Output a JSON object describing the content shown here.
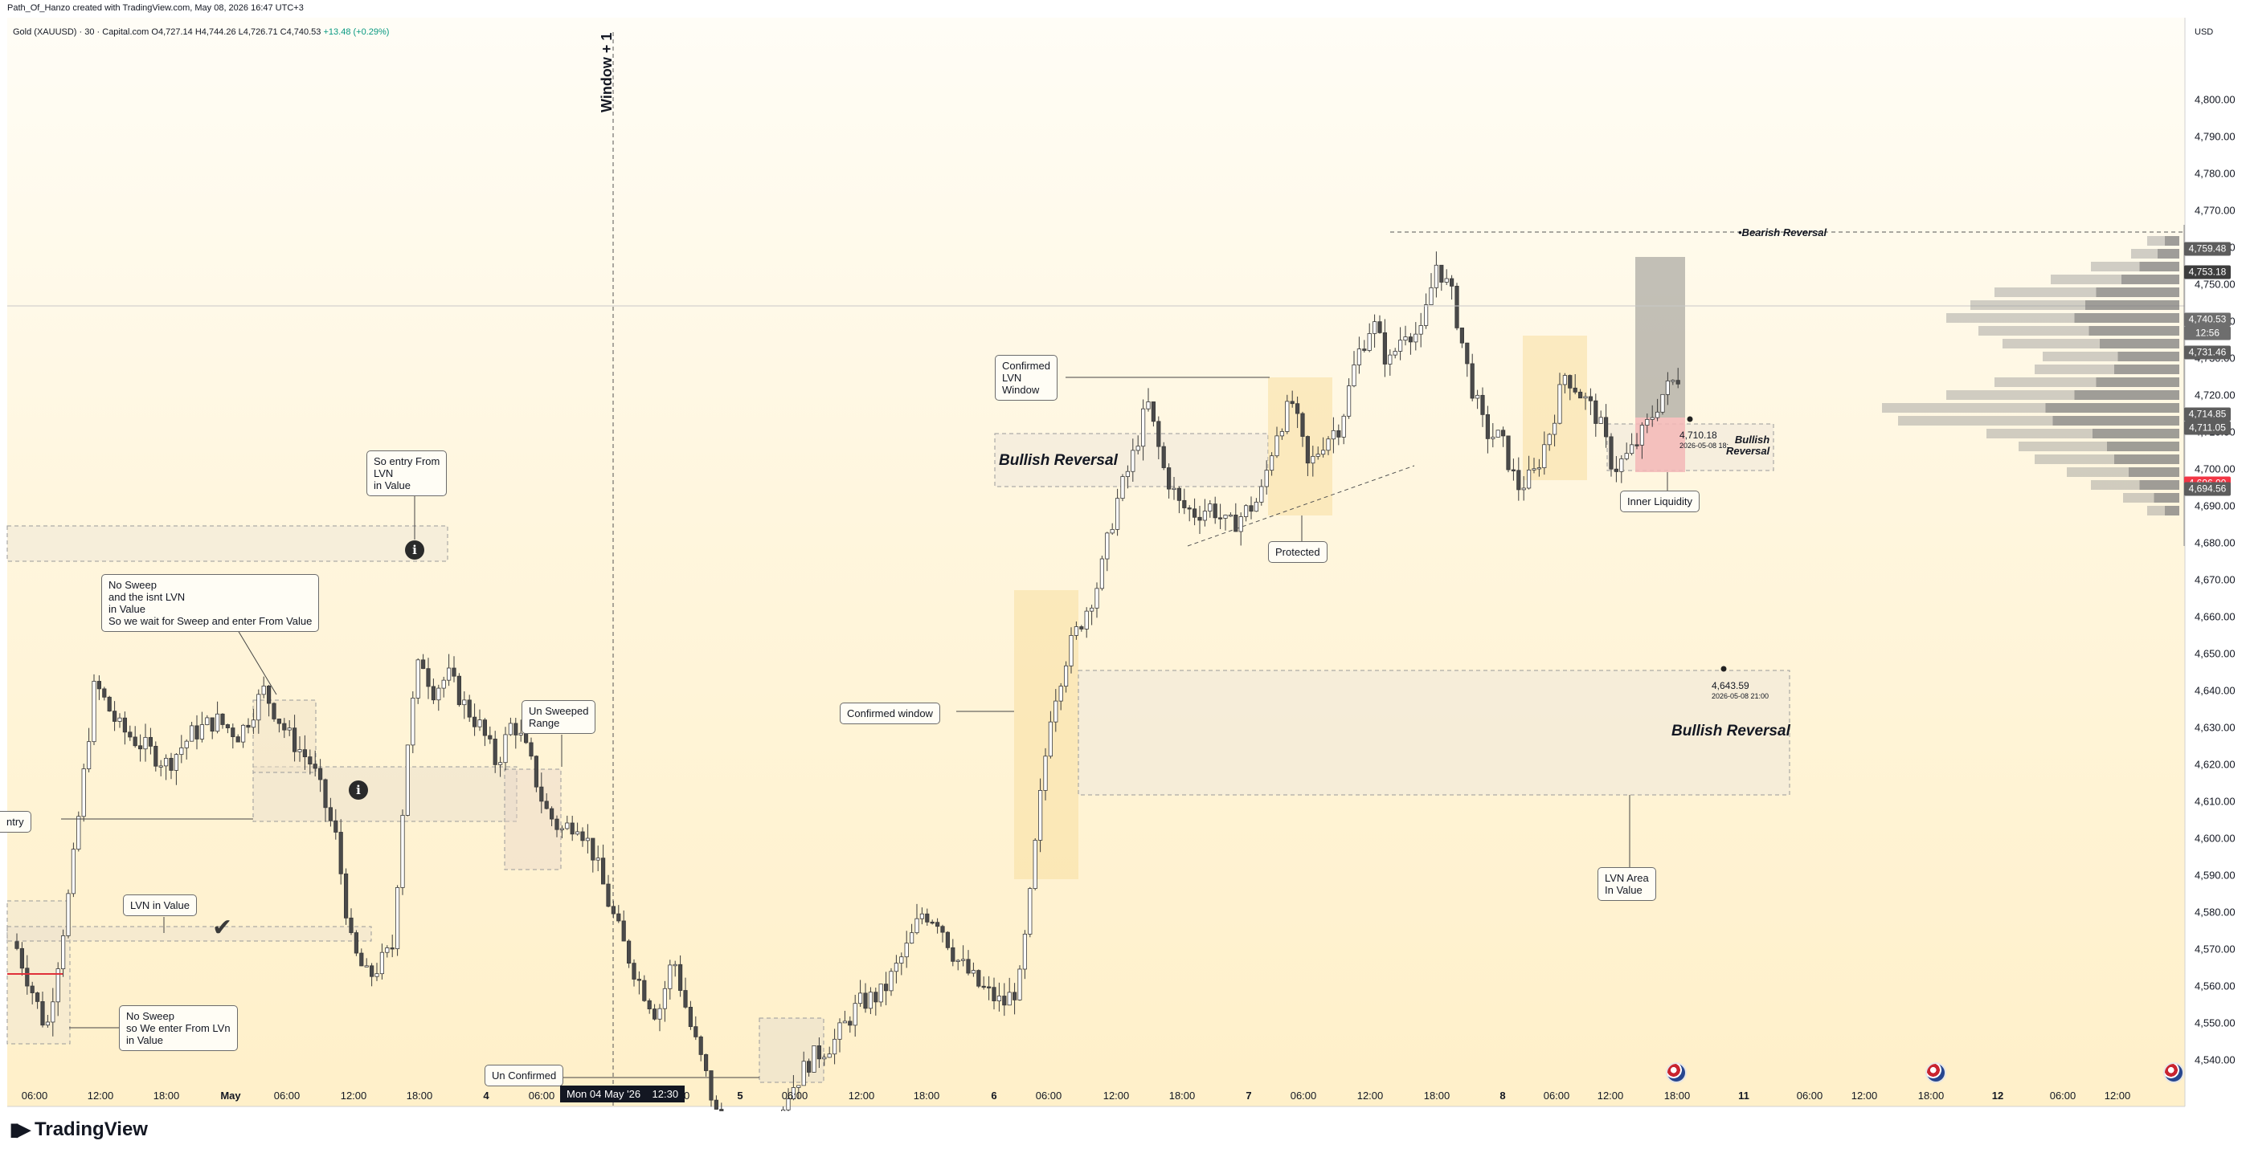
{
  "header": {
    "text": "Path_Of_Hanzo created with TradingView.com, May 08, 2026 16:47 UTC+3"
  },
  "legend": {
    "symbol": "Gold (XAUUSD) · 30 · Capital.com",
    "open": "O4,727.14",
    "high": "H4,744.26",
    "low": "L4,726.71",
    "close": "C4,740.53",
    "change": "+13.48 (+0.29%)"
  },
  "currency": "USD",
  "window_label": "Window + 1",
  "crosshair_label": "Mon 04 May '26",
  "crosshair_time": "12:30",
  "brand": "TradingView",
  "colors": {
    "bull": "#2a2a2a",
    "bear": "#8a8a8a",
    "zone_yellow": "#f7dfa0",
    "zone_red": "#f3b7b7",
    "last_price": "#f23645"
  },
  "annotations": {
    "so_entry": "So entry From\nLVN\nin Value",
    "no_sweep_isnt": "No Sweep\nand the isnt LVN\nin Value\nSo we wait for Sweep and enter From Value",
    "un_swept": "Un Sweeped\nRange",
    "lvn_in_value": "LVN in Value",
    "no_sweep_enter": "No Sweep\nso We enter From LVn\nin Value",
    "un_confirmed": "Un Confirmed",
    "entry_cut": "ntry",
    "confirmed_window": "Confirmed window",
    "confirmed_lvn": "Confirmed\nLVN\nWindow",
    "protected": "Protected",
    "inner_liquidity": "Inner Liquidity",
    "lvn_area": "LVN Area\nIn Value",
    "bullish_reversal_1": "Bullish Reversal",
    "bullish_reversal_2": "Bullish Reversal",
    "bullish_reversal_small": "Bullish\nReversal",
    "bearish_reversal": "•Bearish Reversal",
    "price_4710": "4,710.18",
    "date_4710": "2026-05-08 18:",
    "price_4643": "4,643.59",
    "date_4643": "2026-05-08 21:00"
  },
  "chart_data": {
    "type": "candlestick",
    "title": "Gold (XAUUSD) · 30 · Capital.com",
    "ylim": [
      4535,
      4805
    ],
    "y_ticks": [
      "4,540.00",
      "4,550.00",
      "4,560.00",
      "4,570.00",
      "4,580.00",
      "4,590.00",
      "4,600.00",
      "4,610.00",
      "4,620.00",
      "4,630.00",
      "4,640.00",
      "4,650.00",
      "4,660.00",
      "4,670.00",
      "4,680.00",
      "4,690.00",
      "4,700.00",
      "4,710.00",
      "4,720.00",
      "4,730.00",
      "4,740.00",
      "4,750.00",
      "4,760.00",
      "4,770.00",
      "4,780.00",
      "4,790.00",
      "4,800.00"
    ],
    "x_ticks": [
      {
        "label": "06:00",
        "day": false
      },
      {
        "label": "12:00",
        "day": false
      },
      {
        "label": "18:00",
        "day": false
      },
      {
        "label": "May",
        "day": true
      },
      {
        "label": "06:00",
        "day": false
      },
      {
        "label": "12:00",
        "day": false
      },
      {
        "label": "18:00",
        "day": false
      },
      {
        "label": "4",
        "day": true
      },
      {
        "label": "06:00",
        "day": false
      },
      {
        "label": "18:00",
        "day": false
      },
      {
        "label": "5",
        "day": true
      },
      {
        "label": "06:00",
        "day": false
      },
      {
        "label": "12:00",
        "day": false
      },
      {
        "label": "18:00",
        "day": false
      },
      {
        "label": "6",
        "day": true
      },
      {
        "label": "06:00",
        "day": false
      },
      {
        "label": "12:00",
        "day": false
      },
      {
        "label": "18:00",
        "day": false
      },
      {
        "label": "7",
        "day": true
      },
      {
        "label": "06:00",
        "day": false
      },
      {
        "label": "12:00",
        "day": false
      },
      {
        "label": "18:00",
        "day": false
      },
      {
        "label": "8",
        "day": true
      },
      {
        "label": "06:00",
        "day": false
      },
      {
        "label": "12:00",
        "day": false
      },
      {
        "label": "18:00",
        "day": false
      },
      {
        "label": "11",
        "day": true
      },
      {
        "label": "06:00",
        "day": false
      },
      {
        "label": "12:00",
        "day": false
      },
      {
        "label": "18:00",
        "day": false
      },
      {
        "label": "12",
        "day": true
      },
      {
        "label": "06:00",
        "day": false
      },
      {
        "label": "12:00",
        "day": false
      }
    ],
    "price_badges": [
      {
        "value": 4759.48,
        "label": "4,759.48",
        "color": "#5d5d5d"
      },
      {
        "value": 4753.18,
        "label": "4,753.18",
        "color": "#3d3d3d"
      },
      {
        "value": 4740.53,
        "label": "4,740.53",
        "color": "#6e6e6e"
      },
      {
        "value": 4736.8,
        "label": "12:56",
        "color": "#6e6e6e"
      },
      {
        "value": 4731.46,
        "label": "4,731.46",
        "color": "#5d5d5d"
      },
      {
        "value": 4714.85,
        "label": "4,714.85",
        "color": "#5d5d5d"
      },
      {
        "value": 4711.05,
        "label": "4,711.05",
        "color": "#5d5d5d"
      },
      {
        "value": 4696.0,
        "label": "4,696.00",
        "color": "#f23645"
      },
      {
        "value": 4694.56,
        "label": "4,694.56",
        "color": "#5d5d5d"
      }
    ],
    "path_points": [
      [
        0,
        4572
      ],
      [
        40,
        4548
      ],
      [
        70,
        4588
      ],
      [
        100,
        4642
      ],
      [
        130,
        4630
      ],
      [
        160,
        4625
      ],
      [
        190,
        4620
      ],
      [
        220,
        4628
      ],
      [
        250,
        4632
      ],
      [
        280,
        4628
      ],
      [
        310,
        4640
      ],
      [
        340,
        4628
      ],
      [
        370,
        4620
      ],
      [
        400,
        4600
      ],
      [
        420,
        4570
      ],
      [
        440,
        4562
      ],
      [
        470,
        4570
      ],
      [
        490,
        4628
      ],
      [
        505,
        4650
      ],
      [
        520,
        4640
      ],
      [
        540,
        4644
      ],
      [
        560,
        4636
      ],
      [
        580,
        4630
      ],
      [
        600,
        4620
      ],
      [
        620,
        4632
      ],
      [
        640,
        4622
      ],
      [
        660,
        4608
      ],
      [
        680,
        4602
      ],
      [
        700,
        4605
      ],
      [
        720,
        4596
      ],
      [
        740,
        4582
      ],
      [
        760,
        4570
      ],
      [
        780,
        4560
      ],
      [
        800,
        4552
      ],
      [
        820,
        4568
      ],
      [
        840,
        4550
      ],
      [
        860,
        4536
      ],
      [
        880,
        4520
      ],
      [
        900,
        4510
      ],
      [
        930,
        4512
      ],
      [
        960,
        4530
      ],
      [
        990,
        4540
      ],
      [
        1020,
        4545
      ],
      [
        1050,
        4555
      ],
      [
        1080,
        4558
      ],
      [
        1110,
        4570
      ],
      [
        1130,
        4580
      ],
      [
        1150,
        4578
      ],
      [
        1170,
        4568
      ],
      [
        1200,
        4560
      ],
      [
        1230,
        4555
      ],
      [
        1250,
        4560
      ],
      [
        1262,
        4580
      ],
      [
        1275,
        4608
      ],
      [
        1290,
        4635
      ],
      [
        1310,
        4650
      ],
      [
        1330,
        4660
      ],
      [
        1350,
        4670
      ],
      [
        1370,
        4690
      ],
      [
        1390,
        4702
      ],
      [
        1410,
        4718
      ],
      [
        1430,
        4700
      ],
      [
        1450,
        4690
      ],
      [
        1470,
        4688
      ],
      [
        1490,
        4690
      ],
      [
        1510,
        4684
      ],
      [
        1530,
        4688
      ],
      [
        1550,
        4692
      ],
      [
        1570,
        4710
      ],
      [
        1590,
        4718
      ],
      [
        1610,
        4700
      ],
      [
        1630,
        4708
      ],
      [
        1650,
        4712
      ],
      [
        1670,
        4730
      ],
      [
        1690,
        4740
      ],
      [
        1710,
        4728
      ],
      [
        1730,
        4738
      ],
      [
        1750,
        4736
      ],
      [
        1770,
        4756
      ],
      [
        1790,
        4746
      ],
      [
        1810,
        4725
      ],
      [
        1830,
        4710
      ],
      [
        1850,
        4708
      ],
      [
        1870,
        4695
      ],
      [
        1890,
        4698
      ],
      [
        1910,
        4710
      ],
      [
        1930,
        4726
      ],
      [
        1950,
        4720
      ],
      [
        1970,
        4714
      ],
      [
        1990,
        4700
      ],
      [
        2010,
        4704
      ],
      [
        2030,
        4711
      ],
      [
        2050,
        4720
      ],
      [
        2070,
        4725
      ],
      [
        2090,
        4715
      ],
      [
        2110,
        4725
      ],
      [
        2130,
        4745
      ],
      [
        2140,
        4745
      ]
    ],
    "y_point_values": [
      4696.0,
      4759.48,
      4710.18,
      4643.59
    ]
  }
}
